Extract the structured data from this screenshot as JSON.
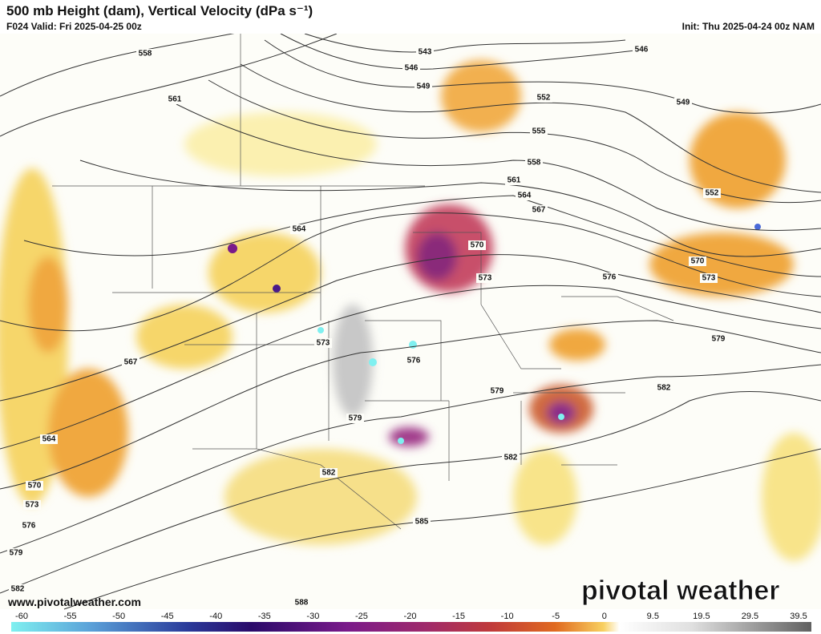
{
  "header": {
    "title": "500 mb Height (dam), Vertical Velocity (dPa s⁻¹)",
    "valid": "F024 Valid: Fri 2025-04-25 00z",
    "init": "Init: Thu 2025-04-24 00z NAM"
  },
  "map": {
    "contour_labels": [
      "558",
      "561",
      "543",
      "546",
      "549",
      "552",
      "555",
      "558",
      "561",
      "564",
      "567",
      "546",
      "549",
      "552",
      "570",
      "573",
      "576",
      "570",
      "573",
      "579",
      "564",
      "567",
      "564",
      "570",
      "573",
      "576",
      "579",
      "582",
      "573",
      "576",
      "579",
      "579",
      "582",
      "582",
      "582",
      "585",
      "588"
    ]
  },
  "colorbar": {
    "ticks": [
      -60,
      -55,
      -50,
      -45,
      -40,
      -35,
      -30,
      -25,
      -20,
      -15,
      -10,
      -5,
      0,
      9.5,
      19.5,
      29.5,
      39.5
    ]
  },
  "footer": {
    "url": "www.pivotalweather.com",
    "brand": "pivotal weather"
  }
}
